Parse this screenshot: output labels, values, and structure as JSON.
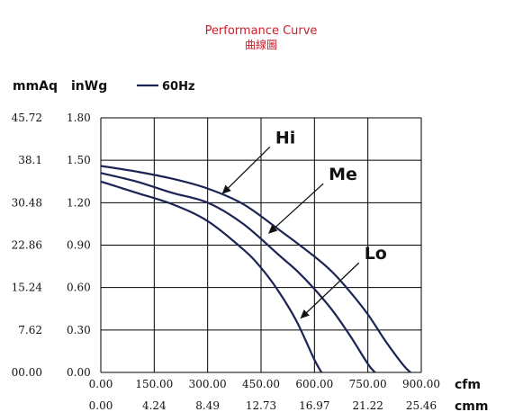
{
  "chart_data": {
    "type": "line",
    "title": "Performance Curve",
    "subtitle": "曲線圖",
    "y_units": [
      "mmAq",
      "inWg"
    ],
    "x_units": [
      "cfm",
      "cmm"
    ],
    "legend": {
      "label": "60Hz",
      "placement": "top-left"
    },
    "xlim": [
      0,
      900
    ],
    "ylim": [
      0,
      1.8
    ],
    "grid": true,
    "x_ticks_cfm": [
      "0.00",
      "150.00",
      "300.00",
      "450.00",
      "600.00",
      "750.00",
      "900.00"
    ],
    "x_ticks_cmm": [
      "0.00",
      "4.24",
      "8.49",
      "12.73",
      "16.97",
      "21.22",
      "25.46"
    ],
    "y_ticks_inwg": [
      "0.00",
      "0.30",
      "0.60",
      "0.90",
      "1.20",
      "1.50",
      "1.80"
    ],
    "y_ticks_mmaq": [
      "00.00",
      "7.62",
      "15.24",
      "22.86",
      "30.48",
      "38.1",
      "45.72"
    ],
    "series": [
      {
        "name": "Hi",
        "x": [
          0,
          100,
          200,
          300,
          400,
          500,
          600,
          650,
          700,
          750,
          800,
          850,
          870
        ],
        "y": [
          1.46,
          1.42,
          1.37,
          1.3,
          1.19,
          1.01,
          0.82,
          0.71,
          0.57,
          0.41,
          0.22,
          0.05,
          0
        ]
      },
      {
        "name": "Me",
        "x": [
          0,
          100,
          200,
          300,
          400,
          500,
          550,
          600,
          650,
          700,
          750,
          770
        ],
        "y": [
          1.41,
          1.35,
          1.27,
          1.2,
          1.05,
          0.83,
          0.72,
          0.59,
          0.44,
          0.26,
          0.06,
          0
        ]
      },
      {
        "name": "Lo",
        "x": [
          0,
          100,
          200,
          300,
          400,
          450,
          500,
          550,
          600,
          620
        ],
        "y": [
          1.35,
          1.27,
          1.19,
          1.07,
          0.87,
          0.74,
          0.57,
          0.36,
          0.09,
          0
        ]
      }
    ],
    "annotations": [
      {
        "label": "Hi",
        "series": "Hi",
        "arrow_to": [
          340,
          1.26
        ],
        "label_at": [
          490,
          1.62
        ]
      },
      {
        "label": "Me",
        "series": "Me",
        "arrow_to": [
          470,
          0.98
        ],
        "label_at": [
          640,
          1.36
        ]
      },
      {
        "label": "Lo",
        "series": "Lo",
        "arrow_to": [
          560,
          0.38
        ],
        "label_at": [
          740,
          0.8
        ]
      }
    ]
  }
}
